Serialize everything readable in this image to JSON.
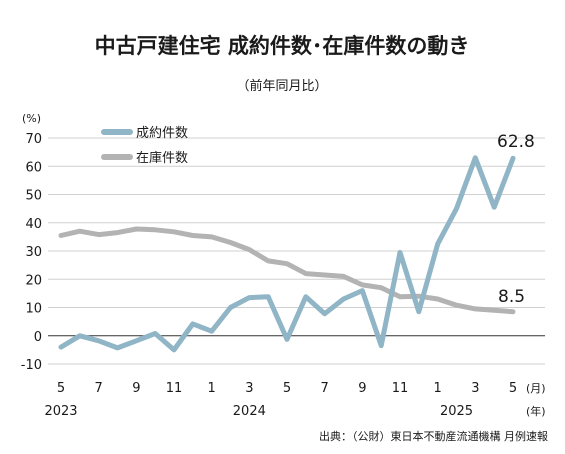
{
  "chart_data": {
    "type": "line",
    "title": "中古戸建住宅 成約件数･在庫件数の動き",
    "subtitle": "（前年同月比）",
    "y_unit": "(%)",
    "x_unit_month": "(月)",
    "x_unit_year": "(年)",
    "ylim": [
      -10,
      70
    ],
    "yticks": [
      -10,
      0,
      10,
      20,
      30,
      40,
      50,
      60,
      70
    ],
    "x": [
      "2023-05",
      "2023-06",
      "2023-07",
      "2023-08",
      "2023-09",
      "2023-10",
      "2023-11",
      "2023-12",
      "2024-01",
      "2024-02",
      "2024-03",
      "2024-04",
      "2024-05",
      "2024-06",
      "2024-07",
      "2024-08",
      "2024-09",
      "2024-10",
      "2024-11",
      "2024-12",
      "2025-01",
      "2025-02",
      "2025-03",
      "2025-04",
      "2025-05"
    ],
    "month_ticks": [
      {
        "x": "2023-05",
        "label": "5"
      },
      {
        "x": "2023-07",
        "label": "7"
      },
      {
        "x": "2023-09",
        "label": "9"
      },
      {
        "x": "2023-11",
        "label": "11"
      },
      {
        "x": "2024-01",
        "label": "1"
      },
      {
        "x": "2024-03",
        "label": "3"
      },
      {
        "x": "2024-05",
        "label": "5"
      },
      {
        "x": "2024-07",
        "label": "7"
      },
      {
        "x": "2024-09",
        "label": "9"
      },
      {
        "x": "2024-11",
        "label": "11"
      },
      {
        "x": "2025-01",
        "label": "1"
      },
      {
        "x": "2025-03",
        "label": "3"
      },
      {
        "x": "2025-05",
        "label": "5"
      }
    ],
    "year_labels": [
      {
        "x": "2023-05",
        "label": "2023"
      },
      {
        "x": "2024-03",
        "label": "2024"
      },
      {
        "x": "2025-02",
        "label": "2025"
      }
    ],
    "legend_placement": "top-left",
    "grid": true,
    "series": [
      {
        "name": "成約件数",
        "color": "#8fb5c6",
        "values": [
          -4.0,
          0.0,
          -1.8,
          -4.3,
          -1.8,
          0.8,
          -5.0,
          4.2,
          1.6,
          10.0,
          13.5,
          13.8,
          -1.3,
          13.8,
          7.8,
          13.0,
          16.0,
          -3.5,
          29.5,
          8.5,
          32.5,
          45.0,
          63.0,
          45.5,
          62.8
        ],
        "end_label": "62.8"
      },
      {
        "name": "在庫件数",
        "color": "#b3b3b3",
        "values": [
          35.5,
          37.0,
          35.8,
          36.5,
          37.8,
          37.5,
          36.8,
          35.5,
          35.0,
          33.0,
          30.5,
          26.5,
          25.5,
          22.0,
          21.5,
          21.0,
          18.0,
          17.0,
          13.8,
          14.0,
          13.0,
          10.8,
          9.5,
          9.0,
          8.5
        ],
        "end_label": "8.5"
      }
    ]
  },
  "source": "出典：（公財）東日本不動産流通機構 月例速報"
}
